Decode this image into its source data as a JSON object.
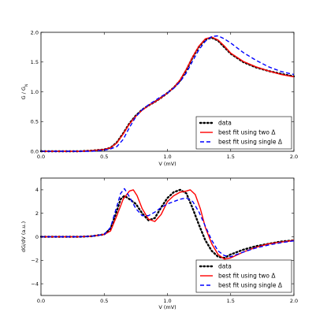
{
  "chart_data": [
    {
      "type": "line",
      "xlabel": "V (mV)",
      "ylabel": "G / G",
      "ylabel_sub": "N",
      "xlim": [
        0.0,
        2.0
      ],
      "ylim": [
        0.0,
        2.0
      ],
      "xticks": [
        0.0,
        0.5,
        1.0,
        1.5,
        2.0
      ],
      "xtick_labels": [
        "0.0",
        "0.5",
        "1.0",
        "1.5",
        "2.0"
      ],
      "yticks": [
        0.0,
        0.5,
        1.0,
        1.5,
        2.0
      ],
      "ytick_labels": [
        "0.0",
        "0.5",
        "1.0",
        "1.5",
        "2.0"
      ],
      "grid": false,
      "legend_position": "lower-right",
      "series": [
        {
          "name": "data",
          "style": "dotted",
          "color": "#000000",
          "x": [
            0.0,
            0.1,
            0.2,
            0.3,
            0.4,
            0.5,
            0.55,
            0.6,
            0.65,
            0.7,
            0.75,
            0.8,
            0.85,
            0.9,
            0.95,
            1.0,
            1.05,
            1.1,
            1.15,
            1.2,
            1.25,
            1.3,
            1.35,
            1.4,
            1.45,
            1.5,
            1.6,
            1.7,
            1.8,
            1.9,
            2.0
          ],
          "y": [
            0.0,
            0.0,
            0.0,
            0.0,
            0.01,
            0.03,
            0.06,
            0.15,
            0.3,
            0.47,
            0.6,
            0.7,
            0.77,
            0.83,
            0.9,
            0.98,
            1.07,
            1.19,
            1.37,
            1.58,
            1.76,
            1.88,
            1.91,
            1.86,
            1.75,
            1.64,
            1.5,
            1.41,
            1.35,
            1.3,
            1.26
          ]
        },
        {
          "name": "best fit using two Δ",
          "style": "solid",
          "color": "#ff0000",
          "x": [
            0.0,
            0.1,
            0.2,
            0.3,
            0.4,
            0.5,
            0.55,
            0.6,
            0.65,
            0.7,
            0.75,
            0.8,
            0.85,
            0.9,
            0.95,
            1.0,
            1.05,
            1.1,
            1.15,
            1.2,
            1.25,
            1.3,
            1.35,
            1.4,
            1.45,
            1.5,
            1.6,
            1.7,
            1.8,
            1.9,
            2.0
          ],
          "y": [
            0.0,
            0.0,
            0.0,
            0.0,
            0.01,
            0.03,
            0.06,
            0.14,
            0.29,
            0.46,
            0.59,
            0.69,
            0.77,
            0.83,
            0.9,
            0.98,
            1.07,
            1.2,
            1.38,
            1.59,
            1.77,
            1.89,
            1.92,
            1.87,
            1.77,
            1.65,
            1.51,
            1.42,
            1.35,
            1.29,
            1.25
          ]
        },
        {
          "name": "best fit using single Δ",
          "style": "dashed",
          "color": "#0000ff",
          "x": [
            0.0,
            0.1,
            0.2,
            0.3,
            0.4,
            0.5,
            0.55,
            0.6,
            0.65,
            0.7,
            0.75,
            0.8,
            0.85,
            0.9,
            0.95,
            1.0,
            1.05,
            1.1,
            1.15,
            1.2,
            1.25,
            1.3,
            1.35,
            1.4,
            1.45,
            1.5,
            1.6,
            1.7,
            1.8,
            1.9,
            2.0
          ],
          "y": [
            0.0,
            0.0,
            0.0,
            0.0,
            0.0,
            0.02,
            0.04,
            0.08,
            0.2,
            0.4,
            0.58,
            0.7,
            0.78,
            0.85,
            0.92,
            0.98,
            1.06,
            1.17,
            1.32,
            1.52,
            1.71,
            1.85,
            1.93,
            1.94,
            1.89,
            1.82,
            1.66,
            1.53,
            1.42,
            1.34,
            1.29
          ]
        }
      ]
    },
    {
      "type": "line",
      "xlabel": "V (mV)",
      "ylabel": "dG/dV (a.u.)",
      "xlim": [
        0.0,
        2.0
      ],
      "ylim": [
        -5.0,
        5.0
      ],
      "xticks": [
        0.0,
        0.5,
        1.0,
        1.5,
        2.0
      ],
      "xtick_labels": [
        "0.0",
        "0.5",
        "1.0",
        "1.5",
        "2.0"
      ],
      "yticks": [
        -4,
        -2,
        0,
        2,
        4
      ],
      "ytick_labels": [
        "−4",
        "−2",
        "0",
        "2",
        "4"
      ],
      "grid": false,
      "legend_position": "lower-right",
      "series": [
        {
          "name": "data",
          "style": "dotted",
          "color": "#000000",
          "x": [
            0.0,
            0.1,
            0.2,
            0.3,
            0.4,
            0.5,
            0.55,
            0.6,
            0.63,
            0.66,
            0.7,
            0.75,
            0.8,
            0.85,
            0.9,
            0.95,
            1.0,
            1.05,
            1.1,
            1.15,
            1.2,
            1.25,
            1.3,
            1.35,
            1.4,
            1.45,
            1.5,
            1.6,
            1.7,
            1.8,
            1.9,
            2.0
          ],
          "y": [
            0.0,
            0.0,
            0.0,
            0.0,
            0.05,
            0.2,
            0.7,
            2.2,
            3.2,
            3.5,
            3.2,
            2.8,
            2.0,
            1.4,
            1.6,
            2.5,
            3.3,
            3.8,
            4.0,
            3.7,
            2.4,
            1.0,
            -0.3,
            -1.2,
            -1.7,
            -1.8,
            -1.5,
            -1.1,
            -0.8,
            -0.6,
            -0.4,
            -0.3
          ]
        },
        {
          "name": "best fit using two Δ",
          "style": "solid",
          "color": "#ff0000",
          "x": [
            0.0,
            0.1,
            0.2,
            0.3,
            0.4,
            0.5,
            0.55,
            0.6,
            0.65,
            0.7,
            0.73,
            0.76,
            0.8,
            0.85,
            0.9,
            0.95,
            1.0,
            1.05,
            1.1,
            1.15,
            1.18,
            1.22,
            1.26,
            1.3,
            1.35,
            1.4,
            1.45,
            1.5,
            1.6,
            1.7,
            1.8,
            1.9,
            2.0
          ],
          "y": [
            0.0,
            0.0,
            0.0,
            0.0,
            0.05,
            0.2,
            0.5,
            1.8,
            3.2,
            3.9,
            4.0,
            3.5,
            2.4,
            1.5,
            1.3,
            1.9,
            3.0,
            3.5,
            3.8,
            3.9,
            4.0,
            3.6,
            2.4,
            0.8,
            -0.6,
            -1.5,
            -1.9,
            -1.8,
            -1.3,
            -0.9,
            -0.6,
            -0.45,
            -0.3
          ]
        },
        {
          "name": "best fit using single Δ",
          "style": "dashed",
          "color": "#0000ff",
          "x": [
            0.0,
            0.1,
            0.2,
            0.3,
            0.4,
            0.5,
            0.55,
            0.6,
            0.63,
            0.66,
            0.7,
            0.75,
            0.8,
            0.85,
            0.9,
            0.95,
            1.0,
            1.05,
            1.1,
            1.15,
            1.2,
            1.25,
            1.3,
            1.35,
            1.4,
            1.45,
            1.5,
            1.6,
            1.7,
            1.8,
            1.9,
            2.0
          ],
          "y": [
            0.0,
            0.0,
            0.0,
            0.0,
            0.05,
            0.2,
            0.8,
            2.6,
            3.7,
            4.1,
            3.4,
            2.4,
            1.8,
            1.8,
            2.1,
            2.5,
            2.8,
            3.0,
            3.2,
            3.3,
            3.0,
            2.1,
            0.9,
            -0.3,
            -1.2,
            -1.6,
            -1.7,
            -1.3,
            -0.95,
            -0.7,
            -0.5,
            -0.35
          ]
        }
      ]
    }
  ]
}
